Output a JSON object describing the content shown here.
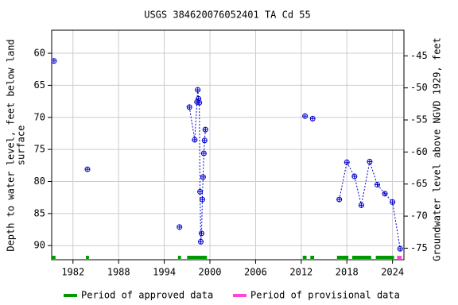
{
  "chart_data": {
    "type": "scatter",
    "title": "USGS 384620076052401 TA Cd  55",
    "y_label": [
      "Depth to water level, feet below land",
      "surface"
    ],
    "y2_label": "Groundwater level above NGVD 1929, feet",
    "xlim": [
      1979.2,
      2025.5
    ],
    "xticks": [
      1982,
      1988,
      1994,
      2000,
      2006,
      2012,
      2018,
      2024
    ],
    "ylim": [
      56.4,
      92.2
    ],
    "invert_y": true,
    "yticks": [
      60,
      65,
      70,
      75,
      80,
      85,
      90
    ],
    "y2lim": [
      -41,
      -76.8
    ],
    "y2ticks": [
      -45,
      -50,
      -55,
      -60,
      -65,
      -70,
      -75
    ],
    "grid": true,
    "series": [
      {
        "color": "#0000cc",
        "x": [
          1979.5,
          null,
          1983.9,
          null,
          1996.0,
          null,
          1997.3,
          1998.0,
          1998.3,
          1998.4,
          1998.5,
          1998.6,
          1998.7,
          1998.8,
          1998.9,
          1999.0,
          1999.1,
          1999.2,
          1999.3,
          1999.4,
          null,
          2012.5,
          null,
          2013.5,
          null,
          2017.0,
          2018.0,
          2019.0,
          2019.9,
          2021.0,
          2022.0,
          2023.0,
          2024.0,
          2025.0
        ],
        "values": [
          61.2,
          null,
          78.1,
          null,
          87.1,
          null,
          68.4,
          73.5,
          67.6,
          65.7,
          67.1,
          67.7,
          81.6,
          89.4,
          88.1,
          82.8,
          79.3,
          75.6,
          73.6,
          71.9,
          null,
          69.8,
          null,
          70.2,
          null,
          82.8,
          77.0,
          79.2,
          83.7,
          76.9,
          80.5,
          81.9,
          83.2,
          90.5
        ]
      }
    ],
    "periods": [
      {
        "name": "Period of approved data",
        "color": "#009900",
        "ranges": [
          [
            1979.2,
            1979.7
          ],
          [
            1983.7,
            1984.1
          ],
          [
            1995.8,
            1996.2
          ],
          [
            1997.0,
            1999.6
          ],
          [
            2012.2,
            2012.7
          ],
          [
            2013.2,
            2013.7
          ],
          [
            2016.7,
            2018.2
          ],
          [
            2018.7,
            2021.2
          ],
          [
            2021.8,
            2024.2
          ]
        ]
      },
      {
        "name": "Period of provisional data",
        "color": "#ff44dd",
        "ranges": [
          [
            2024.6,
            2025.2
          ]
        ]
      }
    ]
  }
}
